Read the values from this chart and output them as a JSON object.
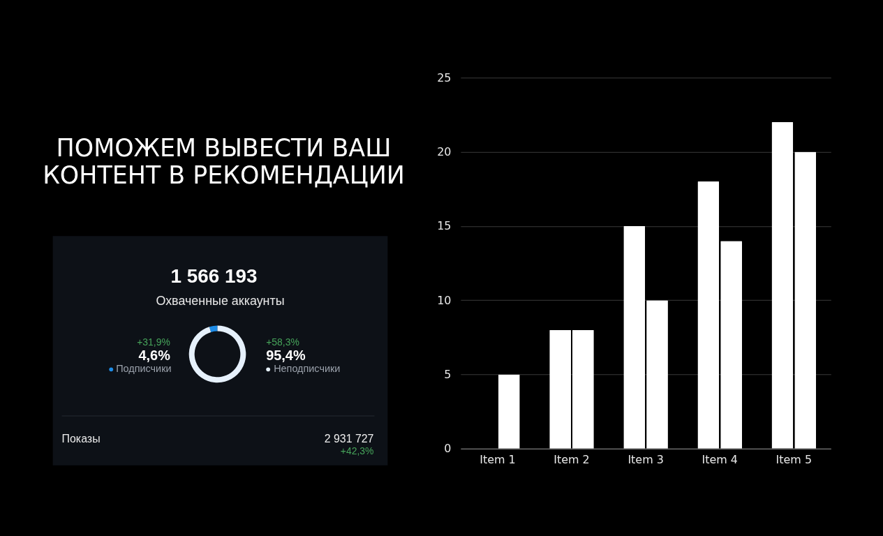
{
  "chart_data": [
    {
      "type": "other",
      "title": "ПОМОЖЕМ ВЫВЕСТИ ВАШ КОНТЕНТ В РЕКОМЕНДАЦИИ"
    },
    {
      "type": "donut",
      "title": "1 566 193",
      "subtitle": "Охваченные аккаунты",
      "categories": [
        "Подписчики",
        "Неподписчики"
      ],
      "values": [
        4.6,
        95.4
      ],
      "colors": [
        "#1e8ce6",
        "#e6f1fc"
      ],
      "value_labels": [
        "4,6%",
        "95,4%"
      ],
      "legend": "bottom",
      "annotations": [
        "+31,9%",
        "+58,3%",
        "Показы",
        "2 931 727",
        "+42,3%"
      ]
    },
    {
      "type": "bar",
      "categories": [
        "Item 1",
        "Item 2",
        "Item 3",
        "Item 4",
        "Item 5"
      ],
      "series": [
        {
          "color": "#ffffff",
          "values": [
            null,
            8,
            15,
            18,
            22
          ]
        },
        {
          "color": "#ffffff",
          "values": [
            5,
            8,
            10,
            14,
            20
          ]
        }
      ],
      "ylim": [
        0,
        25
      ],
      "yticks": [
        0,
        5,
        10,
        15,
        20,
        25
      ],
      "grid": "y"
    }
  ]
}
